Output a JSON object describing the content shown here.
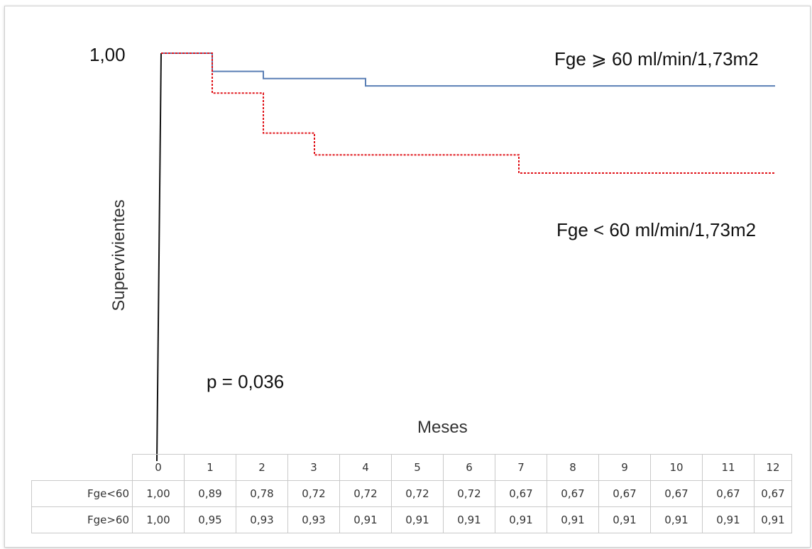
{
  "chart_data": {
    "type": "line",
    "step": true,
    "xlabel": "Meses",
    "ylabel": "Supervivientes",
    "yticks": [
      "1,00"
    ],
    "x": [
      0,
      1,
      2,
      3,
      4,
      5,
      6,
      7,
      8,
      9,
      10,
      11,
      12
    ],
    "xlim": [
      0,
      12
    ],
    "ylim": [
      0.6,
      1.0
    ],
    "annotations": [
      "p = 0,036"
    ],
    "series": [
      {
        "name": "Fge ⩾ 60 ml/min/1,73m2",
        "color": "#5a7fb5",
        "style": "solid",
        "values": [
          1.0,
          0.95,
          0.93,
          0.93,
          0.91,
          0.91,
          0.91,
          0.91,
          0.91,
          0.91,
          0.91,
          0.91,
          0.91
        ]
      },
      {
        "name": "Fge < 60 ml/min/1,73m2",
        "color": "#e0141a",
        "style": "dotted",
        "values": [
          1.0,
          0.89,
          0.78,
          0.72,
          0.72,
          0.72,
          0.72,
          0.67,
          0.67,
          0.67,
          0.67,
          0.67,
          0.67
        ]
      }
    ],
    "table": {
      "header": [
        "0",
        "1",
        "2",
        "3",
        "4",
        "5",
        "6",
        "7",
        "8",
        "9",
        "10",
        "11",
        "12"
      ],
      "rows": [
        {
          "label": "Fge<60",
          "values": [
            "1,00",
            "0,89",
            "0,78",
            "0,72",
            "0,72",
            "0,72",
            "0,72",
            "0,67",
            "0,67",
            "0,67",
            "0,67",
            "0,67",
            "0,67"
          ]
        },
        {
          "label": "Fge>60",
          "values": [
            "1,00",
            "0,95",
            "0,93",
            "0,93",
            "0,91",
            "0,91",
            "0,91",
            "0,91",
            "0,91",
            "0,91",
            "0,91",
            "0,91",
            "0,91"
          ]
        }
      ]
    }
  }
}
